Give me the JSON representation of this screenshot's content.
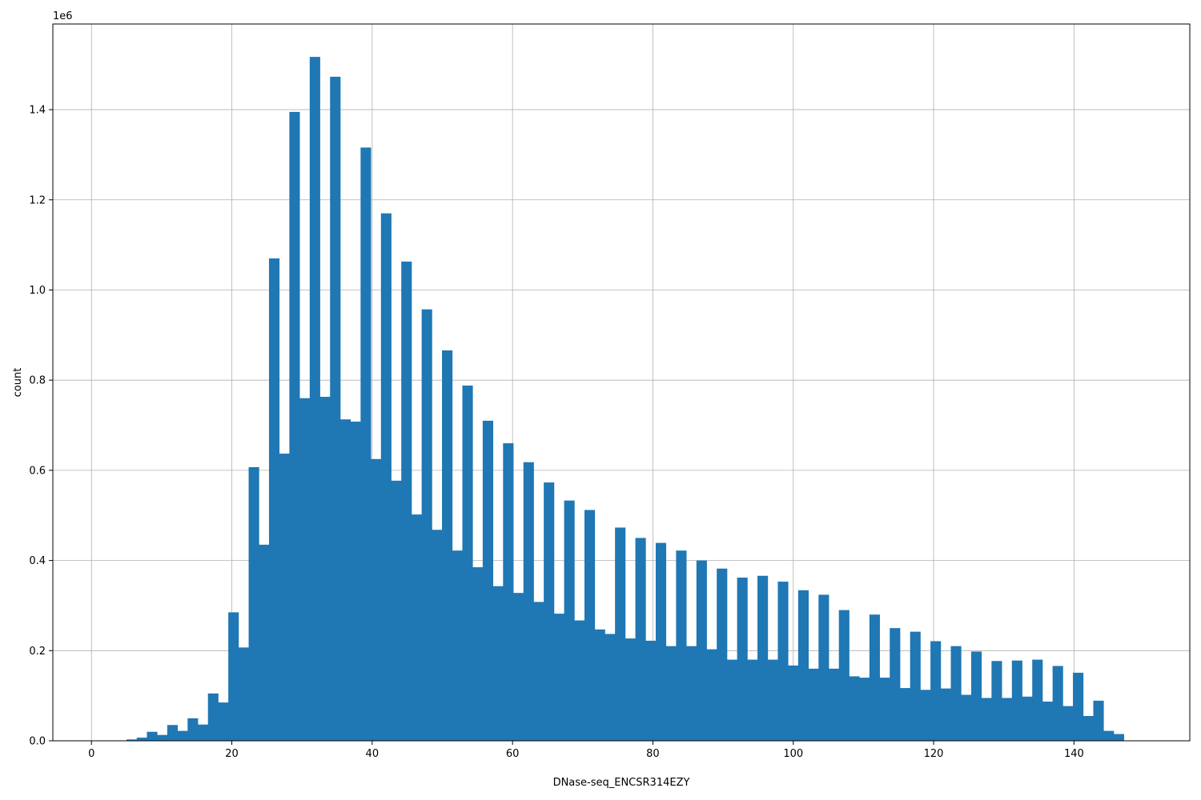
{
  "chart_data": {
    "type": "bar",
    "title": "",
    "xlabel": "DNase-seq_ENCSR314EZY",
    "ylabel": "count",
    "offset_label": "1e6",
    "xlim": [
      -5.5,
      156.5
    ],
    "ylim": [
      0,
      1590000
    ],
    "bin_start": 5,
    "bin_width": 1.45,
    "grid": true,
    "bar_color": "#1f77b4",
    "grid_color": "#b0b0b0",
    "xticks": [
      0,
      20,
      40,
      60,
      80,
      100,
      120,
      140
    ],
    "xtick_labels": [
      "0",
      "20",
      "40",
      "60",
      "80",
      "100",
      "120",
      "140"
    ],
    "yticks": [
      0,
      200000,
      400000,
      600000,
      800000,
      1000000,
      1200000,
      1400000
    ],
    "ytick_labels": [
      "0.0",
      "0.2",
      "0.4",
      "0.6",
      "0.8",
      "1.0",
      "1.2",
      "1.4"
    ],
    "values": [
      3000,
      7000,
      20000,
      13000,
      35000,
      22000,
      50000,
      36000,
      105000,
      85000,
      285000,
      207000,
      607000,
      435000,
      1070000,
      637000,
      1395000,
      760000,
      1517000,
      763000,
      1473000,
      713000,
      708000,
      1316000,
      625000,
      1170000,
      577000,
      1063000,
      502000,
      957000,
      468000,
      866000,
      422000,
      788000,
      385000,
      710000,
      343000,
      660000,
      328000,
      618000,
      308000,
      573000,
      282000,
      533000,
      267000,
      512000,
      247000,
      237000,
      473000,
      227000,
      450000,
      222000,
      439000,
      210000,
      422000,
      210000,
      400000,
      203000,
      382000,
      180000,
      362000,
      180000,
      366000,
      180000,
      353000,
      167000,
      334000,
      160000,
      324000,
      160000,
      290000,
      143000,
      140000,
      280000,
      140000,
      250000,
      117000,
      242000,
      113000,
      221000,
      116000,
      210000,
      102000,
      198000,
      95000,
      177000,
      95000,
      178000,
      98000,
      180000,
      87000,
      166000,
      77000,
      151000,
      55000,
      89000,
      22000,
      15000
    ]
  }
}
